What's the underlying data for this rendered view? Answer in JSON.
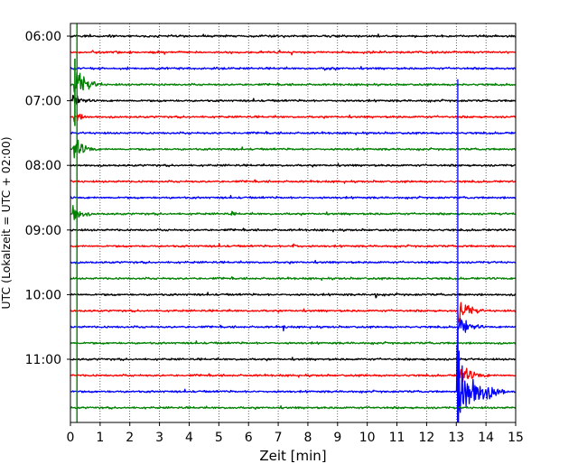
{
  "chart_data": {
    "type": "line",
    "subtype": "helicorder",
    "xlabel": "Zeit  [min]",
    "ylabel": "UTC (Lokalzeit = UTC + 02:00)",
    "xlim": [
      0,
      15
    ],
    "xticks": [
      0,
      1,
      2,
      3,
      4,
      5,
      6,
      7,
      8,
      9,
      10,
      11,
      12,
      13,
      14,
      15
    ],
    "yticks": [
      "06:00",
      "07:00",
      "08:00",
      "09:00",
      "10:00",
      "11:00"
    ],
    "grid": "vertical-dotted",
    "trace_colors": [
      "#000000",
      "#ff0000",
      "#0000ff",
      "#008000"
    ],
    "trace_start": "06:00",
    "trace_minutes": 15,
    "trace_count": 24,
    "events": [
      {
        "trace": 3,
        "minute": 0.15,
        "amplitude": 3.2,
        "duration": 0.9,
        "color": "#008000",
        "note": "large event"
      },
      {
        "trace": 4,
        "minute": 0.1,
        "amplitude": 1.2,
        "duration": 0.6,
        "color": "#ff0000"
      },
      {
        "trace": 5,
        "minute": 0.1,
        "amplitude": 1.0,
        "duration": 0.6,
        "color": "#0000ff"
      },
      {
        "trace": 7,
        "minute": 0.1,
        "amplitude": 2.2,
        "duration": 0.8,
        "color": "#008000"
      },
      {
        "trace": 11,
        "minute": 0.1,
        "amplitude": 2.0,
        "duration": 0.6,
        "color": "#008000"
      },
      {
        "trace": 2,
        "minute": 8.6,
        "amplitude": 0.4,
        "duration": 0.5,
        "color": "#0000ff"
      },
      {
        "trace": 11,
        "minute": 5.4,
        "amplitude": 0.5,
        "duration": 0.2,
        "color": "#008000"
      },
      {
        "trace": 13,
        "minute": 7.5,
        "amplitude": 0.5,
        "duration": 0.4,
        "color": "#ff0000"
      },
      {
        "trace": 16,
        "minute": 10.3,
        "amplitude": 0.6,
        "duration": 0.1,
        "color": "#000000"
      },
      {
        "trace": 18,
        "minute": 7.2,
        "amplitude": 0.6,
        "duration": 0.1,
        "color": "#0000ff"
      },
      {
        "trace": 17,
        "minute": 13.1,
        "amplitude": 2.5,
        "duration": 0.8,
        "color": "#ff0000"
      },
      {
        "trace": 18,
        "minute": 13.1,
        "amplitude": 2.0,
        "duration": 0.8,
        "color": "#0000ff"
      },
      {
        "trace": 22,
        "minute": 13.05,
        "amplitude": 8.0,
        "duration": 1.6,
        "color": "#0000ff",
        "note": "large event"
      },
      {
        "trace": 21,
        "minute": 13.1,
        "amplitude": 2.0,
        "duration": 1.0,
        "color": "#ff0000"
      }
    ]
  }
}
